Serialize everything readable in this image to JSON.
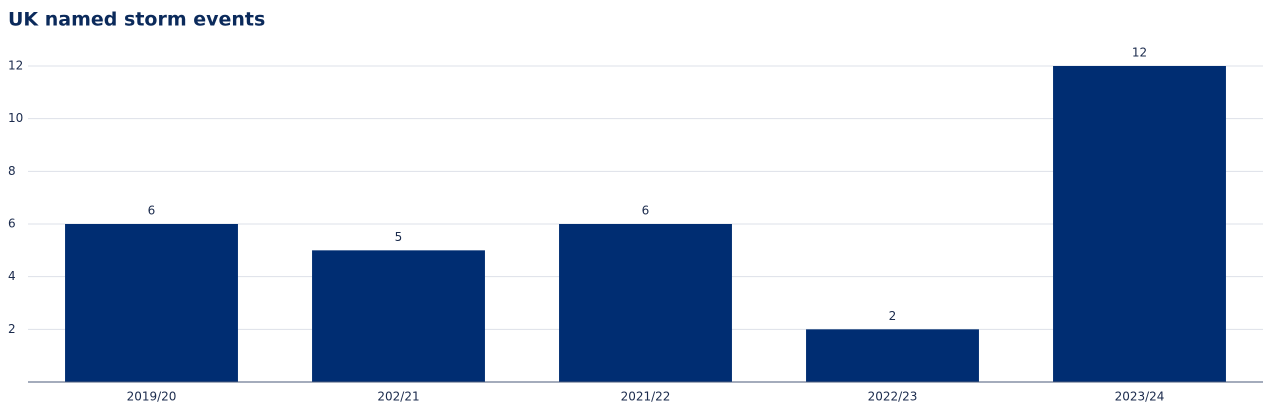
{
  "chart_data": {
    "type": "bar",
    "title": "UK named storm events",
    "categories": [
      "2019/20",
      "202/21",
      "2021/22",
      "2022/23",
      "2023/24"
    ],
    "values": [
      6,
      5,
      6,
      2,
      12
    ],
    "color": "#002d72",
    "ylim": [
      0,
      12
    ],
    "yticks": [
      2,
      4,
      6,
      8,
      10,
      12
    ],
    "grid": true
  }
}
